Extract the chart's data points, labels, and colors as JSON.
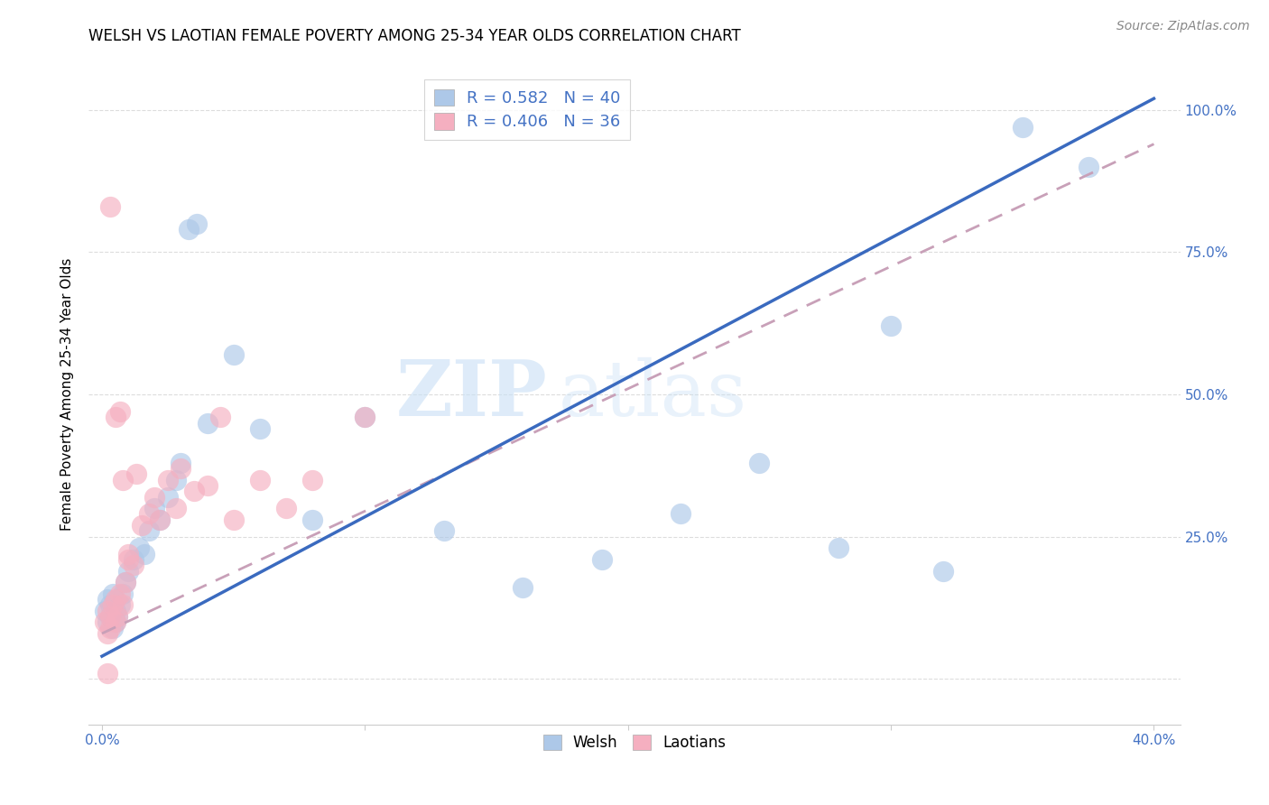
{
  "title": "WELSH VS LAOTIAN FEMALE POVERTY AMONG 25-34 YEAR OLDS CORRELATION CHART",
  "source": "Source: ZipAtlas.com",
  "ylabel": "Female Poverty Among 25-34 Year Olds",
  "xlim": [
    -0.005,
    0.41
  ],
  "ylim": [
    -0.08,
    1.08
  ],
  "watermark_zip": "ZIP",
  "watermark_atlas": "atlas",
  "welsh_color": "#adc8e8",
  "welsh_edge_color": "#adc8e8",
  "laotian_color": "#f5afc0",
  "laotian_edge_color": "#f5afc0",
  "welsh_line_color": "#3a6abf",
  "laotian_line_color": "#c8a0b8",
  "welsh_R": 0.582,
  "welsh_N": 40,
  "laotian_R": 0.406,
  "laotian_N": 36,
  "welsh_scatter_x": [
    0.001,
    0.002,
    0.002,
    0.003,
    0.003,
    0.004,
    0.004,
    0.005,
    0.005,
    0.006,
    0.007,
    0.008,
    0.009,
    0.01,
    0.012,
    0.014,
    0.016,
    0.018,
    0.02,
    0.022,
    0.025,
    0.028,
    0.03,
    0.033,
    0.036,
    0.04,
    0.05,
    0.06,
    0.08,
    0.1,
    0.13,
    0.16,
    0.19,
    0.22,
    0.25,
    0.28,
    0.3,
    0.32,
    0.35,
    0.375
  ],
  "welsh_scatter_y": [
    0.12,
    0.1,
    0.14,
    0.11,
    0.13,
    0.09,
    0.15,
    0.1,
    0.12,
    0.11,
    0.13,
    0.15,
    0.17,
    0.19,
    0.21,
    0.23,
    0.22,
    0.26,
    0.3,
    0.28,
    0.32,
    0.35,
    0.38,
    0.79,
    0.8,
    0.45,
    0.57,
    0.44,
    0.28,
    0.46,
    0.26,
    0.16,
    0.21,
    0.29,
    0.38,
    0.23,
    0.62,
    0.19,
    0.97,
    0.9
  ],
  "laotian_scatter_x": [
    0.001,
    0.002,
    0.002,
    0.003,
    0.003,
    0.004,
    0.005,
    0.005,
    0.006,
    0.007,
    0.008,
    0.009,
    0.01,
    0.012,
    0.015,
    0.018,
    0.02,
    0.022,
    0.025,
    0.028,
    0.03,
    0.035,
    0.04,
    0.045,
    0.05,
    0.06,
    0.07,
    0.08,
    0.1,
    0.003,
    0.005,
    0.008,
    0.01,
    0.013,
    0.002,
    0.007
  ],
  "laotian_scatter_y": [
    0.1,
    0.08,
    0.12,
    0.09,
    0.11,
    0.13,
    0.1,
    0.14,
    0.11,
    0.15,
    0.13,
    0.17,
    0.21,
    0.2,
    0.27,
    0.29,
    0.32,
    0.28,
    0.35,
    0.3,
    0.37,
    0.33,
    0.34,
    0.46,
    0.28,
    0.35,
    0.3,
    0.35,
    0.46,
    0.83,
    0.46,
    0.35,
    0.22,
    0.36,
    0.01,
    0.47
  ],
  "xticks": [
    0.0,
    0.1,
    0.2,
    0.3,
    0.4
  ],
  "xtick_labels_show": [
    "0.0%",
    "",
    "",
    "",
    "40.0%"
  ],
  "yticks": [
    0.0,
    0.25,
    0.5,
    0.75,
    1.0
  ],
  "ytick_labels": [
    "",
    "25.0%",
    "50.0%",
    "75.0%",
    "100.0%"
  ],
  "grid_color": "#dddddd",
  "spine_color": "#cccccc",
  "title_fontsize": 12,
  "label_fontsize": 11,
  "tick_fontsize": 11,
  "source_fontsize": 10,
  "scatter_size": 280,
  "scatter_alpha": 0.65
}
